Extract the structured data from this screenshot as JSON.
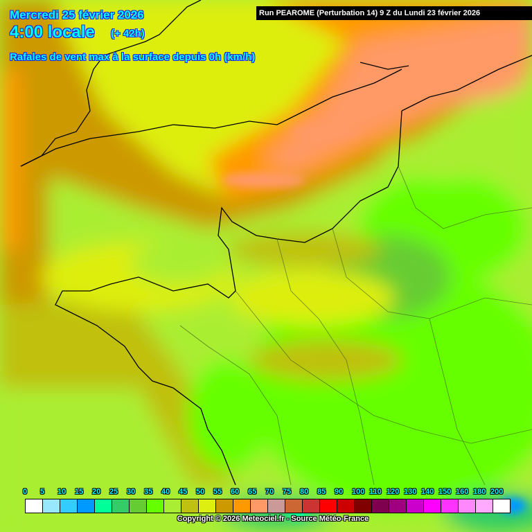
{
  "header": {
    "date": "Mercredi 25 février 2026",
    "hour": "4:00 locale",
    "offset": "(+ 42h)",
    "parameter": "Rafales de vent max à la surface depuis 0h (km/h)",
    "run": "Run PEAROME (Perturbation 14) 9 Z du Lundi 23 février 2026"
  },
  "legend": {
    "unit": "km/h",
    "labels": [
      "0",
      "5",
      "10",
      "15",
      "20",
      "25",
      "30",
      "35",
      "40",
      "45",
      "50",
      "55",
      "60",
      "65",
      "70",
      "75",
      "80",
      "85",
      "90",
      "100",
      "110",
      "120",
      "130",
      "140",
      "150",
      "160",
      "180",
      "200"
    ],
    "colors": [
      "#ffffff",
      "#99e6ff",
      "#33ccff",
      "#0099ff",
      "#00ff99",
      "#33cc66",
      "#66cc33",
      "#66ff00",
      "#aaee33",
      "#c0c010",
      "#ddee11",
      "#cc9900",
      "#ff9900",
      "#ff9966",
      "#cc9999",
      "#cc6633",
      "#cc3333",
      "#ff0000",
      "#cc0000",
      "#800000",
      "#800050",
      "#a00080",
      "#cc00cc",
      "#ff00ff",
      "#ff33ff",
      "#ff88ff",
      "#ffaaff",
      "#ffffff"
    ]
  },
  "footer": {
    "copyright": "Copyright © 2026 Meteociel.fr - Source Météo-France"
  }
}
